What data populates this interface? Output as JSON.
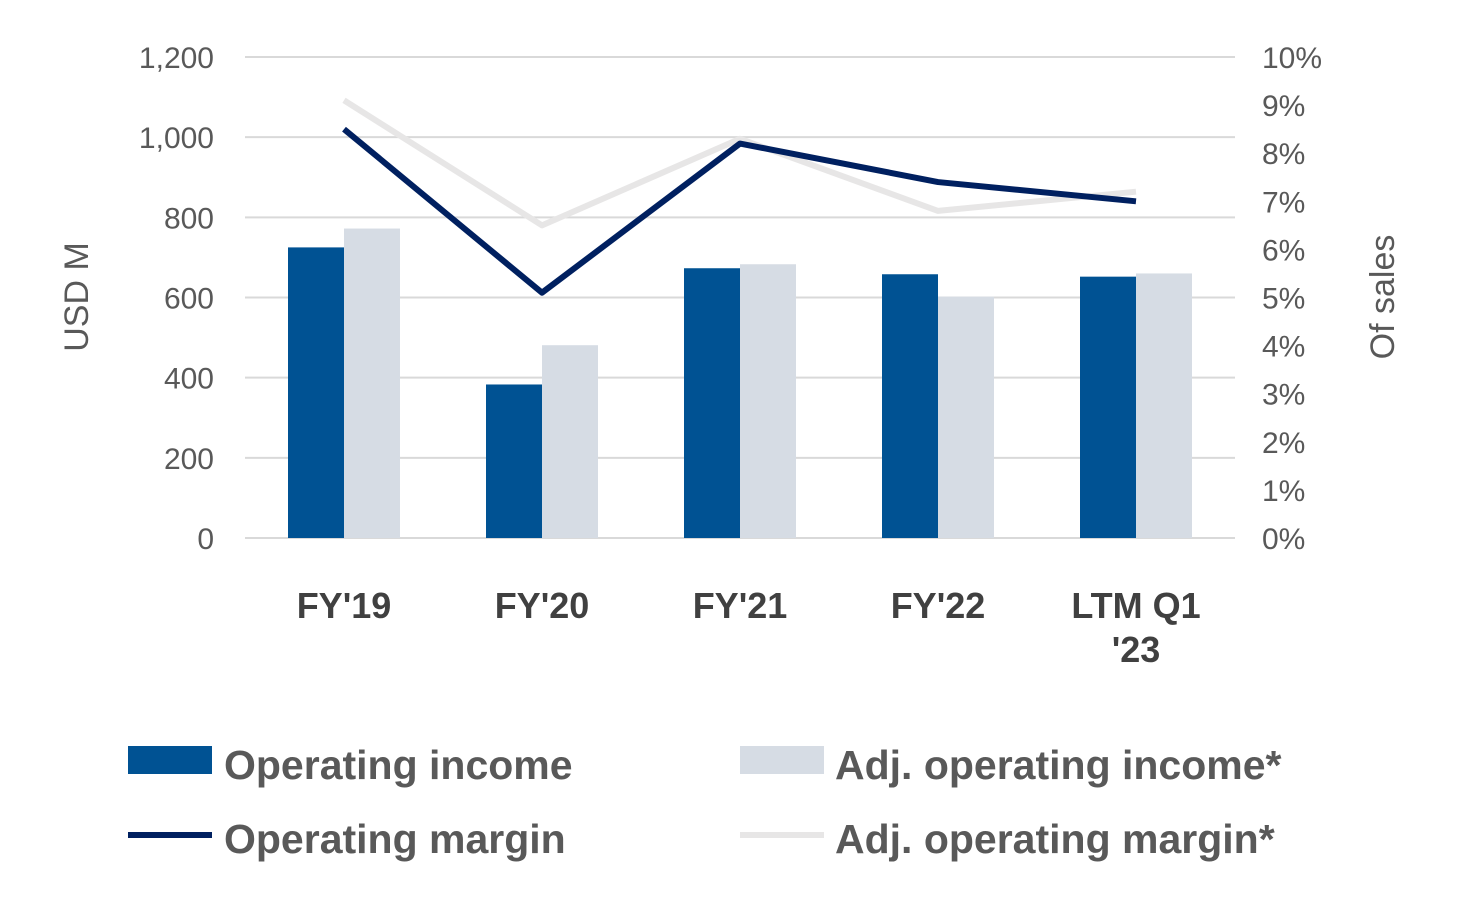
{
  "chart_data": {
    "type": "bar",
    "categories": [
      "FY'19",
      "FY'20",
      "FY'21",
      "FY'22",
      "LTM Q1\n'23"
    ],
    "series": [
      {
        "name": "Operating income",
        "kind": "bar",
        "axis": "left",
        "color": "#005293",
        "values": [
          725,
          383,
          673,
          658,
          652
        ]
      },
      {
        "name": "Adj. operating income*",
        "kind": "bar",
        "axis": "left",
        "color": "#D6DCE4",
        "values": [
          772,
          481,
          683,
          602,
          660
        ]
      }
    ],
    "lines": [
      {
        "name": "Operating margin",
        "axis": "right",
        "color": "#002060",
        "values": [
          8.5,
          5.1,
          8.2,
          7.4,
          7.0
        ]
      },
      {
        "name": "Adj. operating margin*",
        "axis": "right",
        "color": "#E7E6E6",
        "values": [
          9.1,
          6.5,
          8.3,
          6.8,
          7.2
        ]
      }
    ],
    "ylabel": "USD M",
    "y2label": "Of sales",
    "ylim": [
      0,
      1200
    ],
    "yticks": [
      "0",
      "200",
      "400",
      "600",
      "800",
      "1,000",
      "1,200"
    ],
    "y2lim": [
      0,
      10
    ],
    "y2ticks": [
      "0%",
      "1%",
      "2%",
      "3%",
      "4%",
      "5%",
      "6%",
      "7%",
      "8%",
      "9%",
      "10%"
    ],
    "grid": true,
    "legend_position": "bottom",
    "legend": [
      "Operating income",
      "Adj. operating income*",
      "Operating margin",
      "Adj. operating margin*"
    ]
  }
}
